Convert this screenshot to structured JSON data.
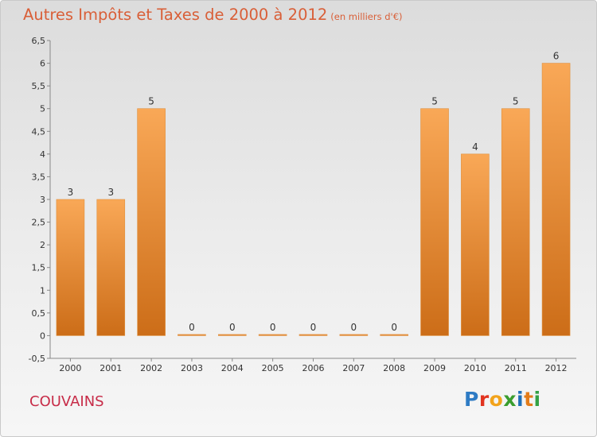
{
  "title": "Autres Impôts et Taxes de 2000 à 2012",
  "title_unit": "(en milliers d'€)",
  "commune": "COUVAINS",
  "logo_text": "Proxiti",
  "colors": {
    "title": "#d95f38",
    "commune": "#c72c48",
    "bar_light": "#f9a857",
    "bar_dark": "#cc6d18"
  },
  "chart_data": {
    "type": "bar",
    "title": "Autres Impôts et Taxes de 2000 à 2012",
    "subtitle": "(en milliers d'€)",
    "categories": [
      "2000",
      "2001",
      "2002",
      "2003",
      "2004",
      "2005",
      "2006",
      "2007",
      "2008",
      "2009",
      "2010",
      "2011",
      "2012"
    ],
    "values": [
      3,
      3,
      5,
      0,
      0,
      0,
      0,
      0,
      0,
      5,
      4,
      5,
      6
    ],
    "ylim": [
      -0.5,
      6.5
    ],
    "yticks": [
      "-0,5",
      "0",
      "0,5",
      "1",
      "1,5",
      "2",
      "2,5",
      "3",
      "3,5",
      "4",
      "4,5",
      "5",
      "5,5",
      "6",
      "6,5"
    ],
    "xlabel": "",
    "ylabel": "",
    "grid": false,
    "legend": "none"
  }
}
